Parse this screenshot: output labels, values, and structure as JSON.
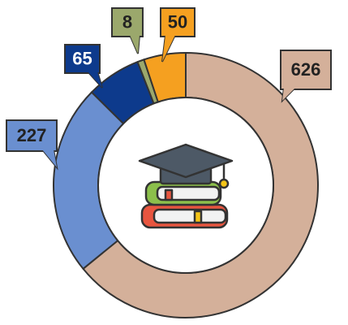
{
  "chart_data": {
    "type": "donut",
    "values": [
      626,
      227,
      65,
      8,
      50
    ],
    "colors": [
      "#d4b09a",
      "#6a8fd0",
      "#0d3a8c",
      "#9ba86c",
      "#f5a020"
    ]
  }
}
